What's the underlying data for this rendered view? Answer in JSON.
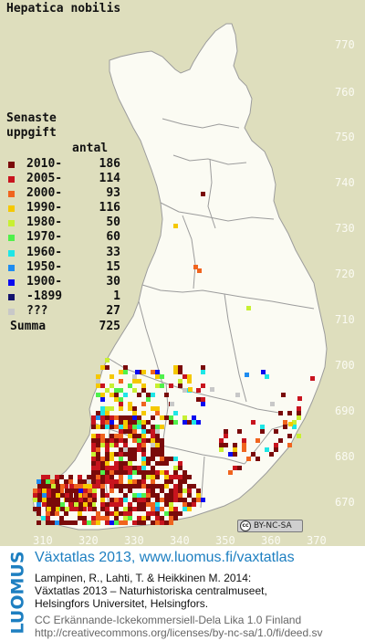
{
  "map": {
    "title": "Hepatica nobilis",
    "grid_labels_y": [
      "770",
      "760",
      "750",
      "740",
      "730",
      "720",
      "710",
      "700",
      "690",
      "680",
      "670"
    ],
    "grid_labels_x": [
      "310",
      "320",
      "330",
      "340",
      "350",
      "360",
      "370"
    ],
    "colors": {
      "background": "#dedebd",
      "finland": "#fbfbf3",
      "border": "#9c9c9c"
    }
  },
  "legend": {
    "heading_line1": "Senaste",
    "heading_line2": "uppgift",
    "count_header": "antal",
    "rows": [
      {
        "label": "2010-",
        "count": "186",
        "color": "#7a0a0a"
      },
      {
        "label": "2005-",
        "count": "114",
        "color": "#c8141e"
      },
      {
        "label": "2000-",
        "count": "93",
        "color": "#f0641e"
      },
      {
        "label": "1990-",
        "count": "116",
        "color": "#f5c800"
      },
      {
        "label": "1980-",
        "count": "50",
        "color": "#c8f032"
      },
      {
        "label": "1970-",
        "count": "60",
        "color": "#50f04b"
      },
      {
        "label": "1960-",
        "count": "33",
        "color": "#1ee6e6"
      },
      {
        "label": "1950-",
        "count": "15",
        "color": "#1e8cf0"
      },
      {
        "label": "1900-",
        "count": "30",
        "color": "#0a0af0"
      },
      {
        "label": "-1899",
        "count": "1",
        "color": "#14146e"
      },
      {
        "label": "???",
        "count": "27",
        "color": "#c8c8c8"
      }
    ],
    "sum_label": "Summa",
    "sum_count": "725"
  },
  "license_badge": {
    "text": "BY-NC-SA",
    "icon": "cc-icon"
  },
  "info": {
    "logo": "LUOMUS",
    "title": "Växtatlas 2013, www.luomus.fi/vaxtatlas",
    "citation_1": "Lampinen, R., Lahti, T. & Heikkinen M. 2014:",
    "citation_2": "Växtatlas 2013 – Naturhistoriska centralmuseet,",
    "citation_3": "Helsingfors Universitet, Helsingfors.",
    "license_1": "CC Erkännande-Ickekommersiell-Dela Lika 1.0 Finland",
    "license_2": "http://creativecommons.org/licenses/by-nc-sa/1.0/fi/deed.sv"
  }
}
